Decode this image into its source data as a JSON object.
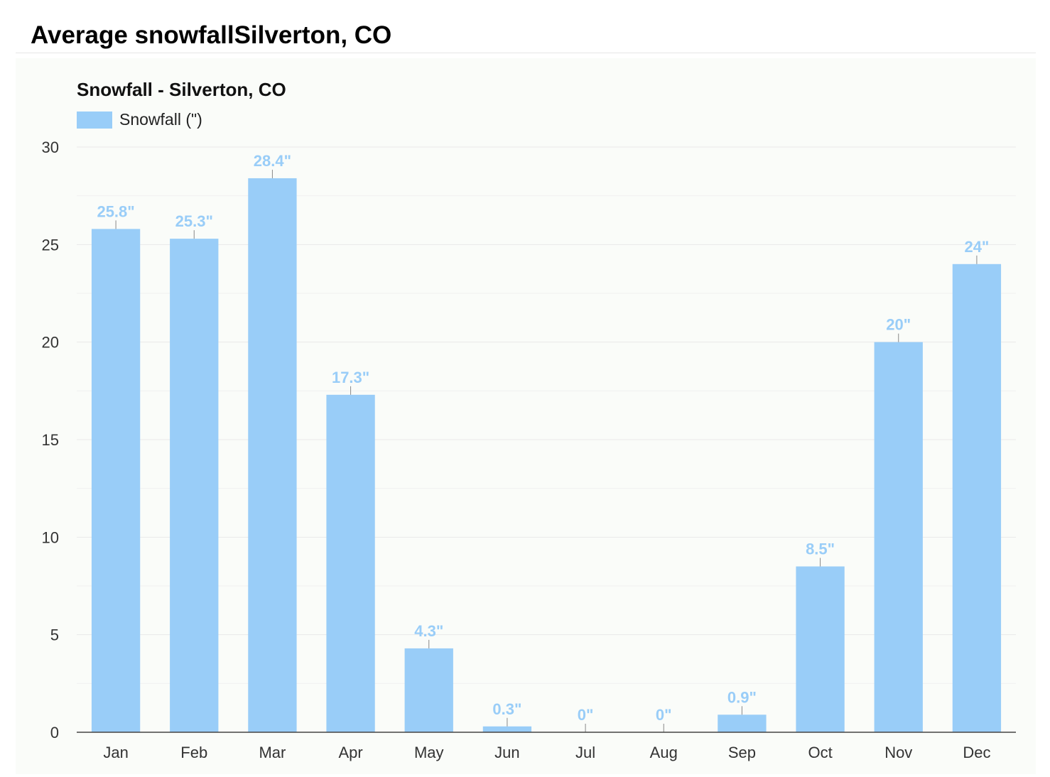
{
  "page": {
    "heading": "Average snowfallSilverton, CO"
  },
  "chart_data": {
    "type": "bar",
    "title": "Snowfall - Silverton, CO",
    "categories": [
      "Jan",
      "Feb",
      "Mar",
      "Apr",
      "May",
      "Jun",
      "Jul",
      "Aug",
      "Sep",
      "Oct",
      "Nov",
      "Dec"
    ],
    "series": [
      {
        "name": "Snowfall (\")",
        "values": [
          25.8,
          25.3,
          28.4,
          17.3,
          4.3,
          0.3,
          0,
          0,
          0.9,
          8.5,
          20,
          24
        ],
        "data_labels": [
          "25.8\"",
          "25.3\"",
          "28.4\"",
          "17.3\"",
          "4.3\"",
          "0.3\"",
          "0\"",
          "0\"",
          "0.9\"",
          "8.5\"",
          "20\"",
          "24\""
        ]
      }
    ],
    "yticks": [
      0,
      5,
      10,
      15,
      20,
      25,
      30
    ],
    "ylim": [
      0,
      30
    ],
    "xlabel": "",
    "ylabel": "",
    "grid": true,
    "legend_position": "top-left",
    "colors": {
      "bar": "#99cdf8",
      "label": "#99cdf8",
      "grid": "#e9e9e9",
      "axis": "#444444",
      "tick_text": "#333333"
    }
  }
}
